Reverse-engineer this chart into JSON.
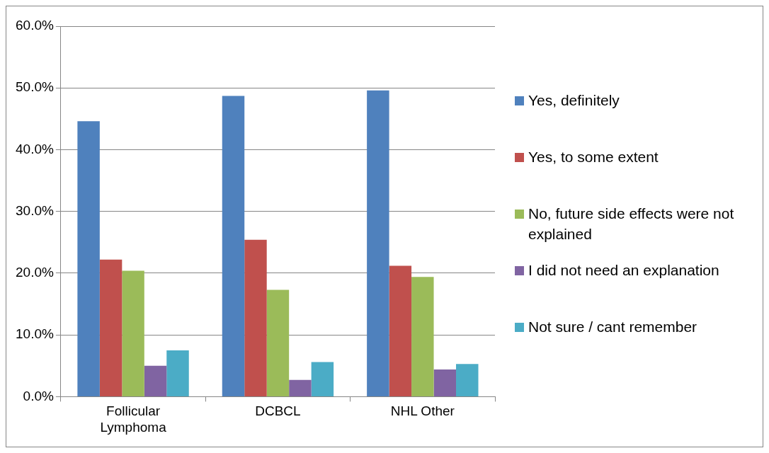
{
  "chart_data": {
    "type": "bar",
    "categories": [
      "Follicular Lymphoma",
      "DCBCL",
      "NHL Other"
    ],
    "series": [
      {
        "name": "Yes, definitely",
        "color": "#4f81bd",
        "values": [
          44.6,
          48.7,
          49.6
        ]
      },
      {
        "name": "Yes, to some extent",
        "color": "#c0504d",
        "values": [
          22.2,
          25.4,
          21.2
        ]
      },
      {
        "name": "No, future side effects were not explained",
        "color": "#9bbb59",
        "values": [
          20.4,
          17.3,
          19.4
        ]
      },
      {
        "name": "I did not need an explanation",
        "color": "#8064a2",
        "values": [
          5.0,
          2.7,
          4.4
        ]
      },
      {
        "name": "Not sure / cant remember",
        "color": "#4bacc6",
        "values": [
          7.5,
          5.6,
          5.3
        ]
      }
    ],
    "ylim": [
      0,
      60
    ],
    "yticks": [
      {
        "value": 0,
        "label": "0.0%"
      },
      {
        "value": 10,
        "label": "10.0%"
      },
      {
        "value": 20,
        "label": "20.0%"
      },
      {
        "value": 30,
        "label": "30.0%"
      },
      {
        "value": 40,
        "label": "40.0%"
      },
      {
        "value": 50,
        "label": "50.0%"
      },
      {
        "value": 60,
        "label": "60.0%"
      }
    ],
    "grid": "y",
    "legend": "right"
  }
}
